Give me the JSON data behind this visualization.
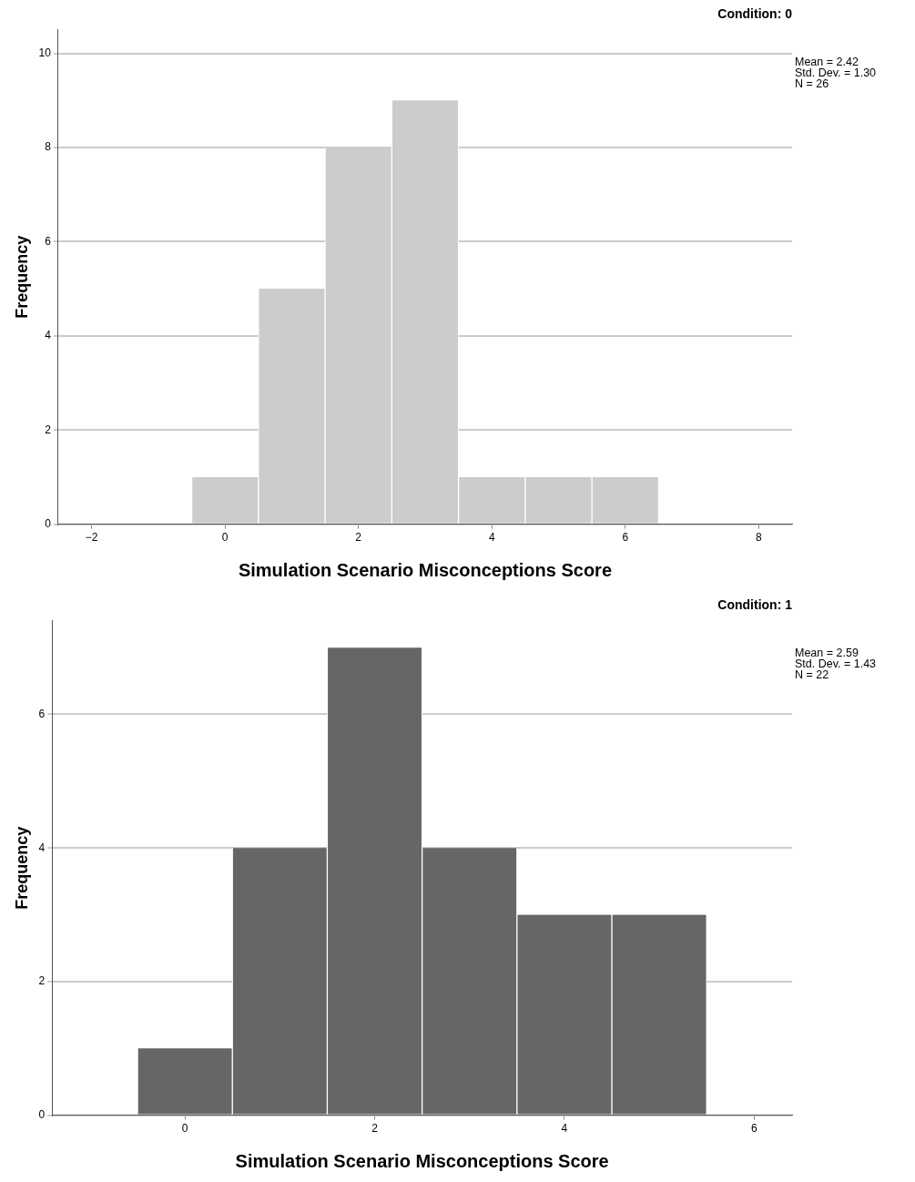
{
  "chart_data": [
    {
      "type": "histogram",
      "title": "Condition: 0",
      "xlabel": "Simulation Scenario Misconceptions Score",
      "ylabel": "Frequency",
      "bins": [
        -0.5,
        0.5,
        1.5,
        2.5,
        3.5,
        4.5,
        5.5,
        6.5
      ],
      "values": [
        1,
        5,
        8,
        9,
        1,
        1,
        1
      ],
      "color": "#cccccc",
      "xlim": [
        -2.5,
        8.5
      ],
      "xticks": [
        {
          "value": -2,
          "label": "−2"
        },
        0,
        2,
        4,
        6,
        8
      ],
      "ylim": [
        0,
        10.5
      ],
      "yticks": [
        0,
        2,
        4,
        6,
        8,
        10
      ],
      "grid": "y",
      "legend": false,
      "annotations": [
        "Mean = 2.42",
        "Std. Dev. = 1.30",
        "N = 26"
      ]
    },
    {
      "type": "histogram",
      "title": "Condition: 1",
      "xlabel": "Simulation Scenario Misconceptions Score",
      "ylabel": "Frequency",
      "bins": [
        -0.5,
        0.5,
        1.5,
        2.5,
        3.5,
        4.5,
        5.5
      ],
      "values": [
        1,
        4,
        7,
        4,
        3,
        3
      ],
      "color": "#666666",
      "xlim": [
        -1.4,
        6.4
      ],
      "xticks": [
        0,
        2,
        4,
        6
      ],
      "ylim": [
        0,
        7.4
      ],
      "yticks": [
        0,
        2,
        4,
        6
      ],
      "grid": "y",
      "legend": false,
      "annotations": [
        "Mean = 2.59",
        "Std. Dev. = 1.43",
        "N = 22"
      ]
    }
  ]
}
